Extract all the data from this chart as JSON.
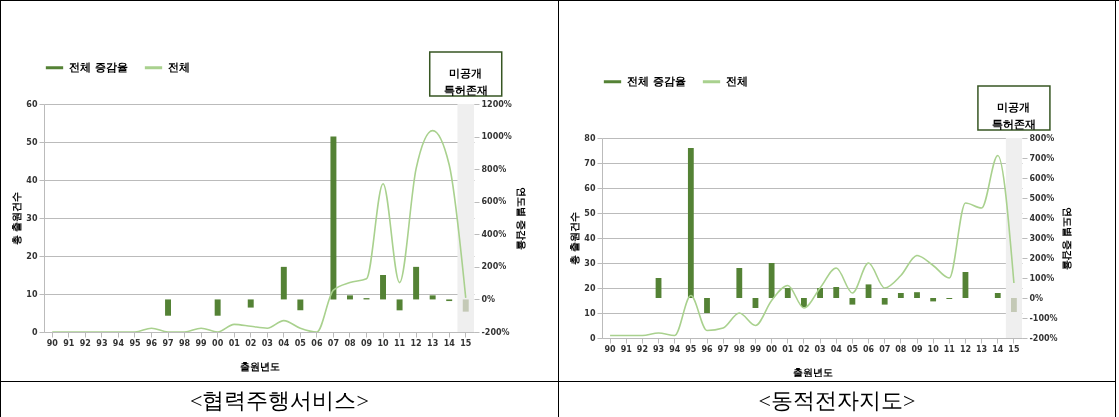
{
  "chart_data": [
    {
      "type": "bar",
      "xlabel": "출원년도",
      "ylabel": "총 출원건수",
      "y2label": "연도별 증감율",
      "legend": "top",
      "grid": "y",
      "categories": [
        "90",
        "91",
        "92",
        "93",
        "94",
        "95",
        "96",
        "97",
        "98",
        "99",
        "00",
        "01",
        "02",
        "03",
        "04",
        "05",
        "06",
        "07",
        "08",
        "09",
        "10",
        "11",
        "12",
        "13",
        "14",
        "15"
      ],
      "ylim": [
        0,
        60
      ],
      "yticks": [
        0,
        10,
        20,
        30,
        40,
        50,
        60
      ],
      "y2lim": [
        -200,
        1200
      ],
      "y2ticks": [
        {
          "value": -200,
          "label": "-200%"
        },
        {
          "value": 0,
          "label": "0%"
        },
        {
          "value": 200,
          "label": "200%"
        },
        {
          "value": 400,
          "label": "400%"
        },
        {
          "value": 600,
          "label": "600%"
        },
        {
          "value": 800,
          "label": "800%"
        },
        {
          "value": 1000,
          "label": "1000%"
        },
        {
          "value": 1200,
          "label": "1200%"
        }
      ],
      "series": [
        {
          "name": "전체 증감율",
          "type": "bar",
          "axis": "y2",
          "color": "#548235",
          "colors": [
            "#548235",
            "#548235",
            "#548235",
            "#548235",
            "#548235",
            "#548235",
            "#548235",
            "#548235",
            "#548235",
            "#548235",
            "#548235",
            "#548235",
            "#548235",
            "#548235",
            "#548235",
            "#548235",
            "#548235",
            "#548235",
            "#548235",
            "#548235",
            "#548235",
            "#548235",
            "#548235",
            "#548235",
            "#548235",
            "#c4c9b6"
          ],
          "values": [
            null,
            null,
            null,
            null,
            null,
            null,
            null,
            -100,
            null,
            null,
            -100,
            null,
            -50,
            null,
            200,
            -67,
            null,
            1000,
            25,
            8,
            150,
            -67,
            200,
            25,
            -10,
            -75
          ]
        },
        {
          "name": "전체",
          "type": "line",
          "color": "#a9d18e",
          "values": [
            0,
            0,
            0,
            0,
            0,
            0,
            1,
            0,
            0,
            1,
            0,
            2,
            1.5,
            1,
            3,
            1,
            0,
            11,
            13,
            14,
            39,
            13,
            43,
            53,
            44,
            9
          ]
        }
      ],
      "bands": [
        {
          "axis": "x",
          "from": "15",
          "to": "15",
          "label": "미공개 특허존재",
          "color": "#efefef"
        }
      ],
      "annotations": [
        "<협력주행서비스>"
      ]
    },
    {
      "type": "bar",
      "xlabel": "출원년도",
      "ylabel": "총 출원건수",
      "y2label": "연도별 증감율",
      "legend": "top",
      "grid": "y",
      "categories": [
        "90",
        "91",
        "92",
        "93",
        "94",
        "95",
        "96",
        "97",
        "98",
        "99",
        "00",
        "01",
        "02",
        "03",
        "04",
        "05",
        "06",
        "07",
        "08",
        "09",
        "10",
        "11",
        "12",
        "13",
        "14",
        "15"
      ],
      "ylim": [
        0,
        80
      ],
      "yticks": [
        0,
        10,
        20,
        30,
        40,
        50,
        60,
        70,
        80
      ],
      "y2lim": [
        -200,
        800
      ],
      "y2ticks": [
        {
          "value": -200,
          "label": "-200%"
        },
        {
          "value": -100,
          "label": "-100%"
        },
        {
          "value": 0,
          "label": "0%"
        },
        {
          "value": 100,
          "label": "100%"
        },
        {
          "value": 200,
          "label": "200%"
        },
        {
          "value": 300,
          "label": "300%"
        },
        {
          "value": 400,
          "label": "400%"
        },
        {
          "value": 500,
          "label": "500%"
        },
        {
          "value": 600,
          "label": "600%"
        },
        {
          "value": 700,
          "label": "700%"
        },
        {
          "value": 800,
          "label": "800%"
        }
      ],
      "series": [
        {
          "name": "전체 증감율",
          "type": "bar",
          "axis": "y2",
          "color": "#548235",
          "colors": [
            "#548235",
            "#548235",
            "#548235",
            "#548235",
            "#548235",
            "#548235",
            "#548235",
            "#548235",
            "#548235",
            "#548235",
            "#548235",
            "#548235",
            "#548235",
            "#548235",
            "#548235",
            "#548235",
            "#548235",
            "#548235",
            "#548235",
            "#548235",
            "#548235",
            "#548235",
            "#548235",
            "#548235",
            "#548235",
            "#c4c9b6"
          ],
          "values": [
            null,
            null,
            null,
            100,
            null,
            750,
            -75,
            null,
            150,
            -50,
            175,
            50,
            -45,
            50,
            55,
            -33,
            68,
            -33,
            25,
            29,
            -17,
            -5,
            130,
            null,
            25,
            -70
          ]
        },
        {
          "name": "전체",
          "type": "line",
          "color": "#a9d18e",
          "values": [
            1,
            1,
            1,
            2,
            1,
            17,
            3,
            4,
            10,
            5,
            15,
            21,
            12,
            20,
            28,
            18,
            30,
            20,
            25,
            33,
            29,
            24,
            54,
            52,
            73,
            22
          ]
        }
      ],
      "bands": [
        {
          "axis": "x",
          "from": "15",
          "to": "15",
          "label": "미공개 특허존재",
          "color": "#efefef"
        }
      ],
      "annotations": [
        "<동적전자지도>"
      ]
    }
  ]
}
